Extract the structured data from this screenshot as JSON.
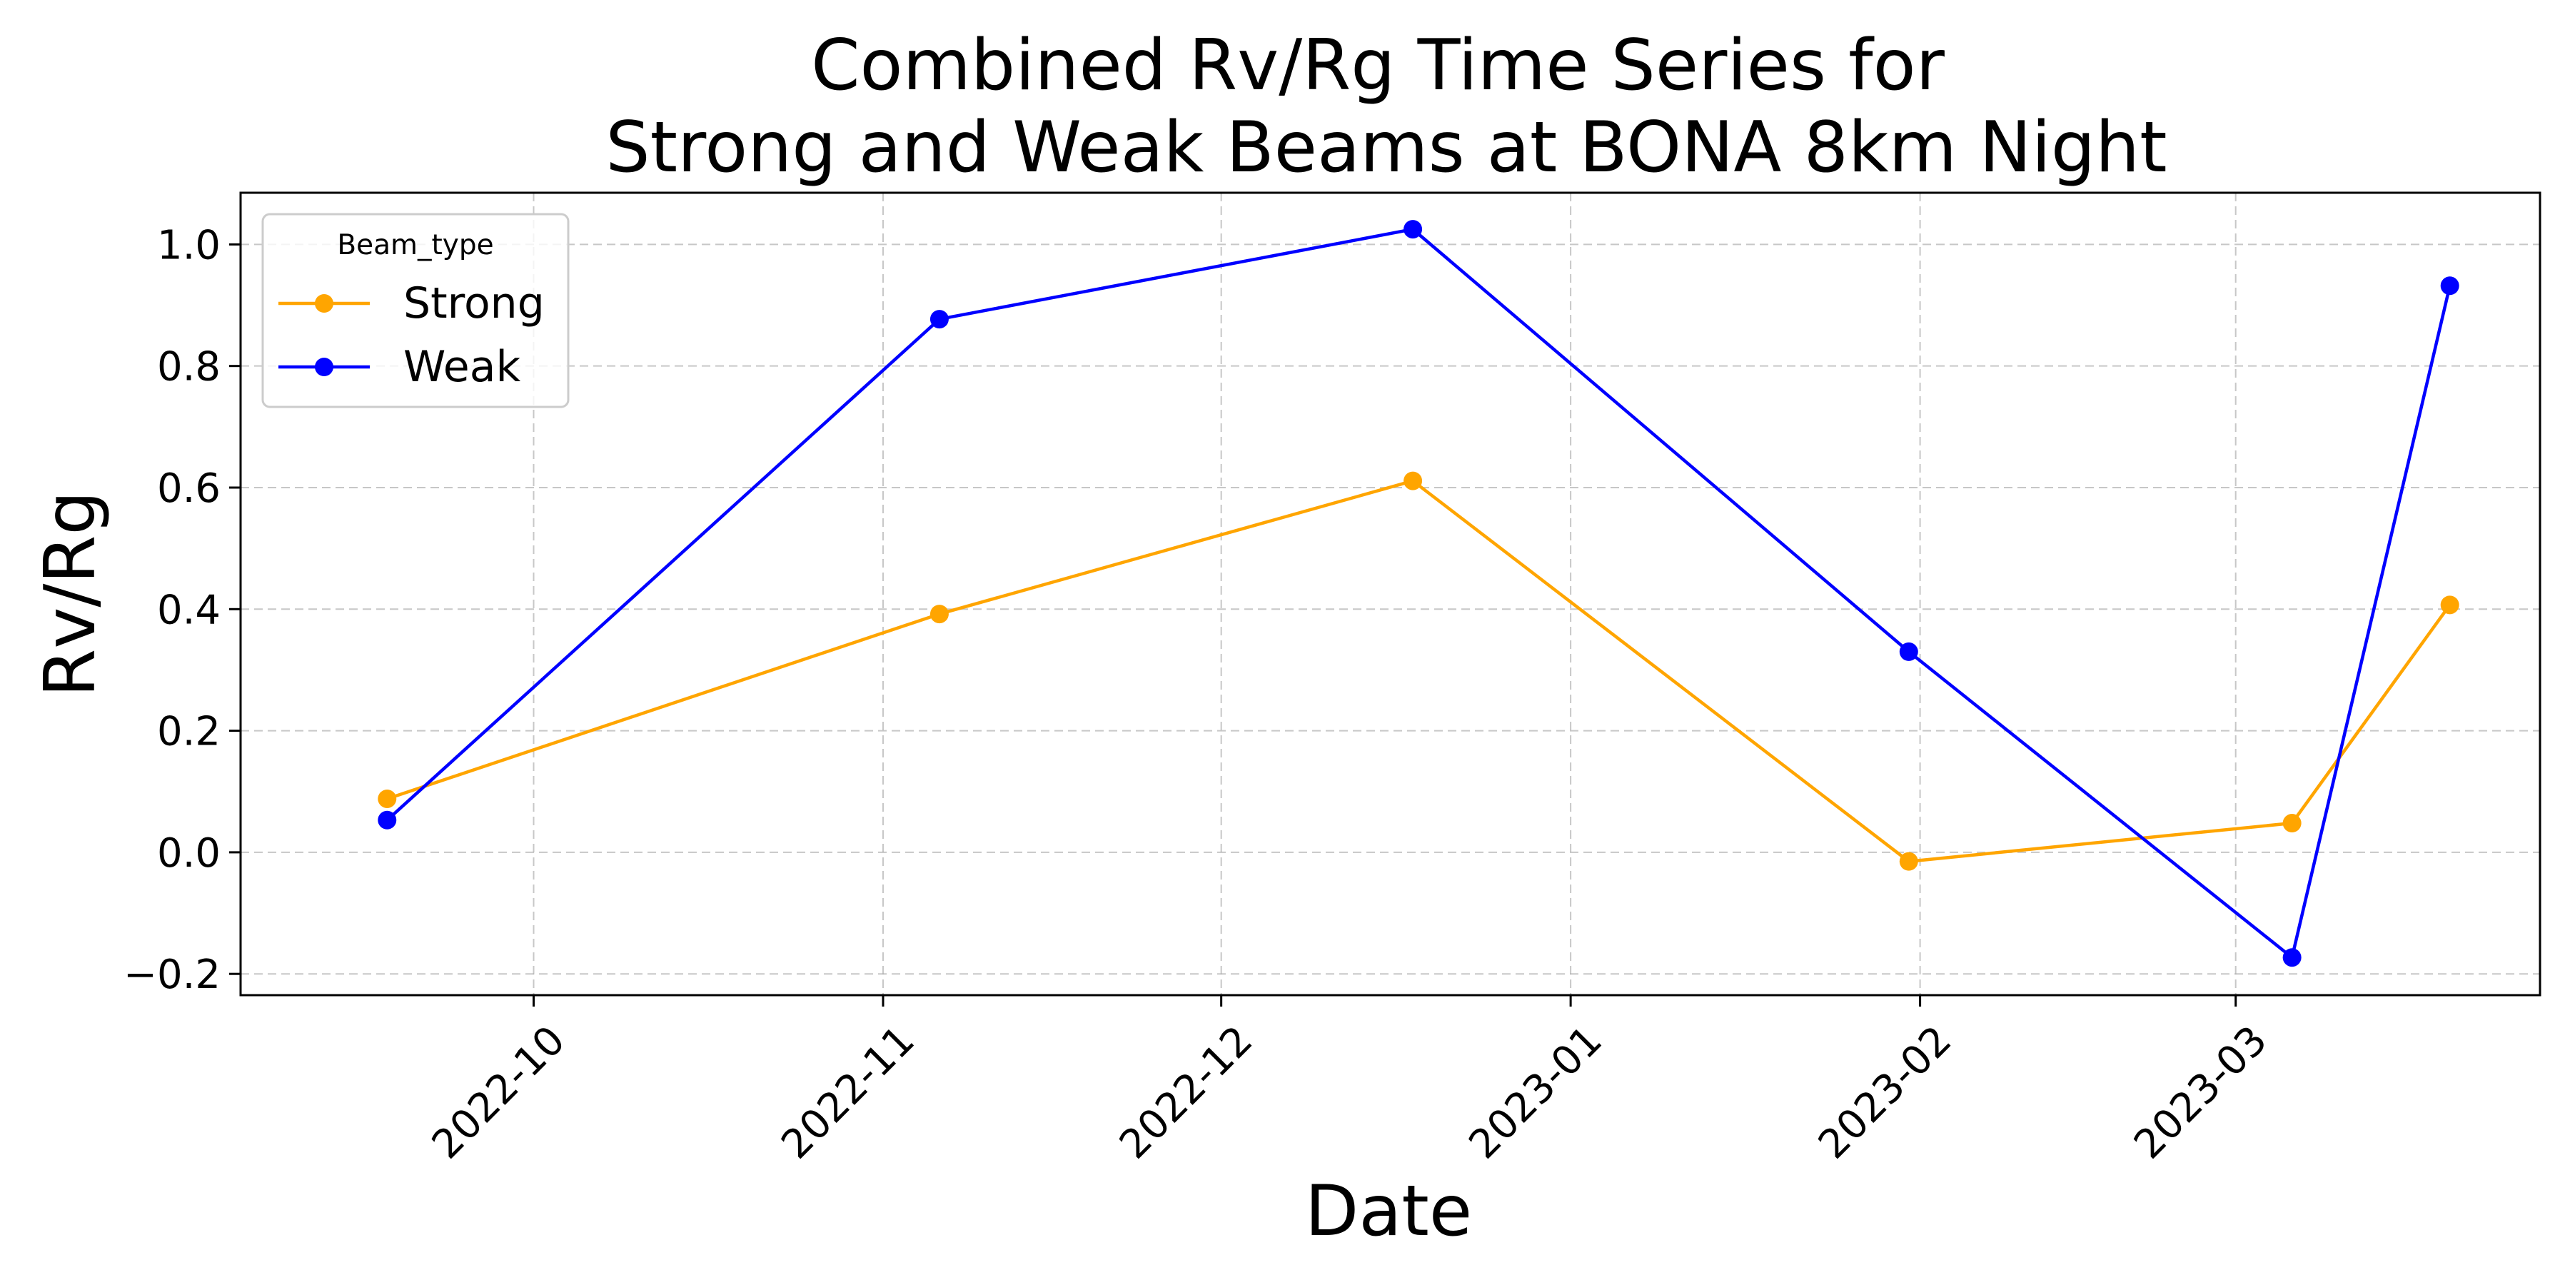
{
  "chart_data": {
    "type": "line",
    "title": [
      "Combined Rv/Rg Time Series for",
      "Strong and Weak Beams at BONA 8km Night"
    ],
    "xlabel": "Date",
    "ylabel": "Rv/Rg",
    "x_type": "date",
    "xlim": [
      "2022-09-05",
      "2023-03-28"
    ],
    "ylim": [
      -0.235,
      1.085
    ],
    "x_ticks": [
      {
        "date": "2022-10-01",
        "label": "2022-10"
      },
      {
        "date": "2022-11-01",
        "label": "2022-11"
      },
      {
        "date": "2022-12-01",
        "label": "2022-12"
      },
      {
        "date": "2023-01-01",
        "label": "2023-01"
      },
      {
        "date": "2023-02-01",
        "label": "2023-02"
      },
      {
        "date": "2023-03-01",
        "label": "2023-03"
      }
    ],
    "y_ticks": [
      {
        "value": -0.2,
        "label": "−0.2"
      },
      {
        "value": 0.0,
        "label": "0.0"
      },
      {
        "value": 0.2,
        "label": "0.2"
      },
      {
        "value": 0.4,
        "label": "0.4"
      },
      {
        "value": 0.6,
        "label": "0.6"
      },
      {
        "value": 0.8,
        "label": "0.8"
      },
      {
        "value": 1.0,
        "label": "1.0"
      }
    ],
    "grid": true,
    "legend": {
      "title": "Beam_type",
      "placement": "top-left"
    },
    "series": [
      {
        "name": "Strong",
        "color": "#FFA500",
        "marker": "circle",
        "points": [
          {
            "x": "2022-09-18",
            "y": 0.088
          },
          {
            "x": "2022-11-06",
            "y": 0.392
          },
          {
            "x": "2022-12-18",
            "y": 0.611
          },
          {
            "x": "2023-01-31",
            "y": -0.015
          },
          {
            "x": "2023-03-06",
            "y": 0.048
          },
          {
            "x": "2023-03-20",
            "y": 0.407
          }
        ]
      },
      {
        "name": "Weak",
        "color": "#0000FF",
        "marker": "circle",
        "points": [
          {
            "x": "2022-09-18",
            "y": 0.053
          },
          {
            "x": "2022-11-06",
            "y": 0.877
          },
          {
            "x": "2022-12-18",
            "y": 1.025
          },
          {
            "x": "2023-01-31",
            "y": 0.33
          },
          {
            "x": "2023-03-06",
            "y": -0.173
          },
          {
            "x": "2023-03-20",
            "y": 0.932
          }
        ]
      }
    ]
  }
}
